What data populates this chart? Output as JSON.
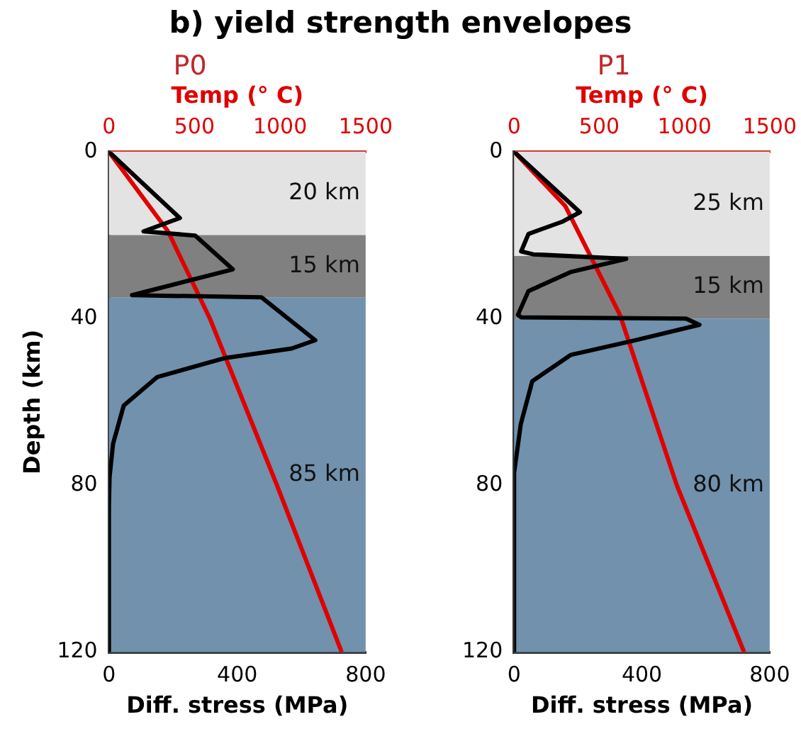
{
  "chart_data": [
    {
      "type": "line",
      "title": "b) yield strength envelopes",
      "subtitle": "P0",
      "xlabel": "Diff. stress (MPa)",
      "x2label": "Temp (° C)",
      "ylabel": "Depth (km)",
      "xlim": [
        0,
        800
      ],
      "xticks": [
        0,
        400,
        800
      ],
      "x2lim": [
        0,
        1500
      ],
      "x2ticks": [
        0,
        500,
        1000,
        1500
      ],
      "ylim": [
        120,
        0
      ],
      "yticks": [
        0,
        40,
        80,
        120
      ],
      "grid": false,
      "legend": false,
      "bands": [
        {
          "axis": "y",
          "from": 0,
          "to": 20,
          "label": "20 km",
          "color": "#e3e3e3"
        },
        {
          "axis": "y",
          "from": 20,
          "to": 35,
          "label": "15 km",
          "color": "#808080"
        },
        {
          "axis": "y",
          "from": 35,
          "to": 120,
          "label": "85 km",
          "color": "#7191ad"
        }
      ],
      "series": [
        {
          "color": "#000000",
          "x": [
            0,
            221,
            108,
            269,
            386,
            72,
            475,
            643,
            569,
            360,
            151,
            46,
            13,
            2,
            0,
            0
          ],
          "values": [
            0,
            15.9,
            19.1,
            20.1,
            28.2,
            34.4,
            34.9,
            45.2,
            47.2,
            49.5,
            54,
            60.9,
            70,
            78,
            85,
            120
          ]
        },
        {
          "color": "#e00000",
          "axis": "x2",
          "x": [
            0,
            344,
            590,
            982,
            1360
          ],
          "values": [
            0,
            19,
            40,
            80,
            120
          ]
        }
      ]
    },
    {
      "type": "line",
      "subtitle": "P1",
      "xlabel": "Diff. stress (MPa)",
      "x2label": "Temp (° C)",
      "xlim": [
        0,
        800
      ],
      "xticks": [
        0,
        400,
        800
      ],
      "x2lim": [
        0,
        1500
      ],
      "x2ticks": [
        0,
        500,
        1000,
        1500
      ],
      "ylim": [
        120,
        0
      ],
      "yticks": [
        0,
        40,
        80,
        120
      ],
      "grid": false,
      "legend": false,
      "bands": [
        {
          "axis": "y",
          "from": 0,
          "to": 25,
          "label": "25 km",
          "color": "#e3e3e3"
        },
        {
          "axis": "y",
          "from": 25,
          "to": 40,
          "label": "15 km",
          "color": "#808080"
        },
        {
          "axis": "y",
          "from": 40,
          "to": 120,
          "label": "80 km",
          "color": "#7191ad"
        }
      ],
      "series": [
        {
          "color": "#000000",
          "x": [
            0,
            206,
            150,
            45,
            22,
            60,
            351,
            179,
            45,
            12,
            22,
            538,
            580,
            374,
            178,
            57,
            21,
            0,
            0
          ],
          "values": [
            0,
            14.5,
            16.8,
            19.7,
            23.9,
            24.6,
            25.7,
            28.8,
            33.4,
            39.1,
            39.7,
            40,
            41.5,
            45.3,
            48.7,
            55,
            65.3,
            77,
            120
          ]
        },
        {
          "color": "#e00000",
          "axis": "x2",
          "x": [
            0,
            300,
            620,
            955,
            1350
          ],
          "values": [
            0,
            13,
            39,
            80,
            120
          ]
        }
      ]
    }
  ]
}
